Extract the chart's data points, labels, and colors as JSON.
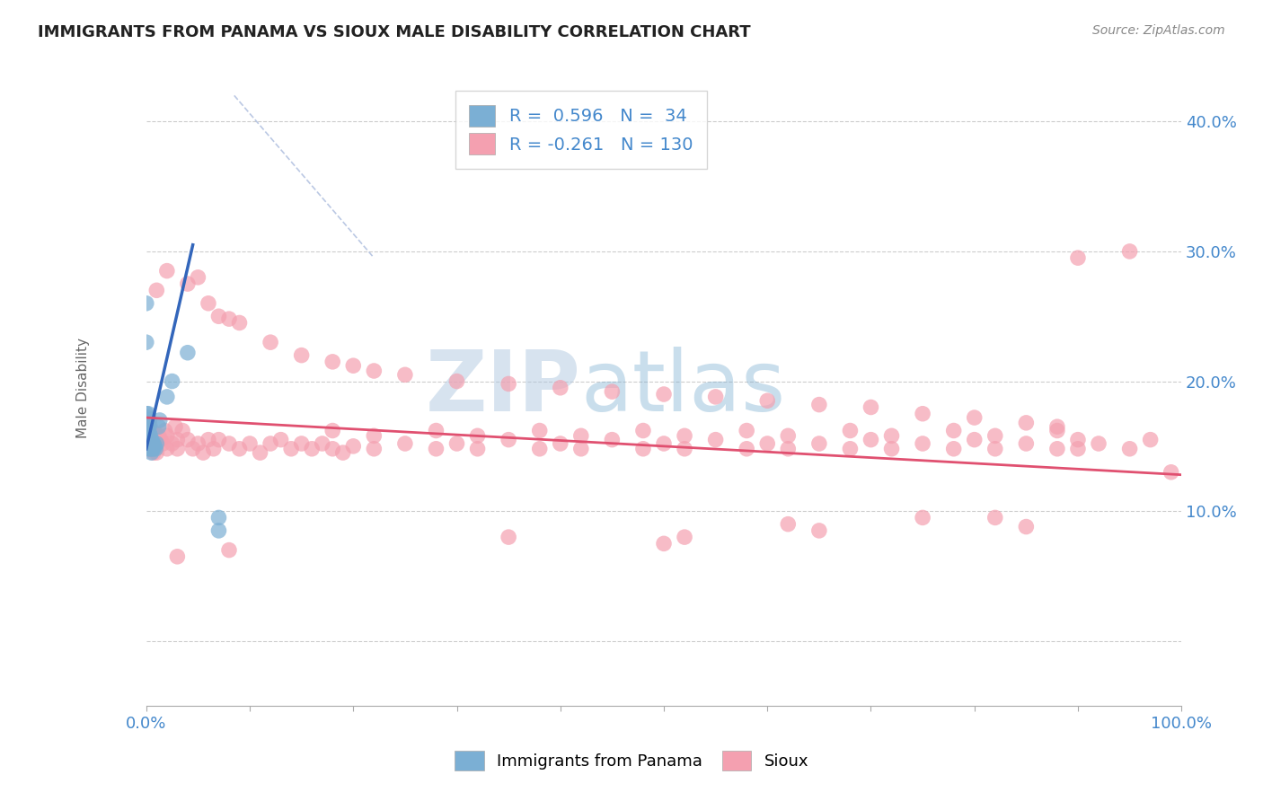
{
  "title": "IMMIGRANTS FROM PANAMA VS SIOUX MALE DISABILITY CORRELATION CHART",
  "source": "Source: ZipAtlas.com",
  "ylabel": "Male Disability",
  "xlim": [
    0.0,
    1.0
  ],
  "ylim": [
    -0.05,
    0.44
  ],
  "yticks": [
    0.0,
    0.1,
    0.2,
    0.3,
    0.4
  ],
  "ytick_labels": [
    "",
    "10.0%",
    "20.0%",
    "30.0%",
    "40.0%"
  ],
  "blue_R": "0.596",
  "blue_N": "34",
  "pink_R": "-0.261",
  "pink_N": "130",
  "watermark_zip": "ZIP",
  "watermark_atlas": "atlas",
  "blue_scatter": [
    [
      0.0,
      0.26
    ],
    [
      0.0,
      0.23
    ],
    [
      0.0,
      0.175
    ],
    [
      0.001,
      0.172
    ],
    [
      0.001,
      0.168
    ],
    [
      0.002,
      0.175
    ],
    [
      0.002,
      0.17
    ],
    [
      0.002,
      0.165
    ],
    [
      0.003,
      0.17
    ],
    [
      0.003,
      0.165
    ],
    [
      0.003,
      0.16
    ],
    [
      0.003,
      0.155
    ],
    [
      0.003,
      0.15
    ],
    [
      0.003,
      0.148
    ],
    [
      0.004,
      0.158
    ],
    [
      0.004,
      0.153
    ],
    [
      0.004,
      0.148
    ],
    [
      0.005,
      0.155
    ],
    [
      0.005,
      0.15
    ],
    [
      0.005,
      0.145
    ],
    [
      0.006,
      0.153
    ],
    [
      0.006,
      0.148
    ],
    [
      0.007,
      0.152
    ],
    [
      0.007,
      0.148
    ],
    [
      0.008,
      0.15
    ],
    [
      0.009,
      0.148
    ],
    [
      0.01,
      0.152
    ],
    [
      0.012,
      0.165
    ],
    [
      0.013,
      0.17
    ],
    [
      0.02,
      0.188
    ],
    [
      0.025,
      0.2
    ],
    [
      0.04,
      0.222
    ],
    [
      0.07,
      0.095
    ],
    [
      0.07,
      0.085
    ]
  ],
  "pink_scatter": [
    [
      0.0,
      0.168
    ],
    [
      0.0,
      0.162
    ],
    [
      0.0,
      0.155
    ],
    [
      0.0,
      0.15
    ],
    [
      0.001,
      0.165
    ],
    [
      0.001,
      0.158
    ],
    [
      0.001,
      0.152
    ],
    [
      0.002,
      0.162
    ],
    [
      0.002,
      0.155
    ],
    [
      0.003,
      0.168
    ],
    [
      0.003,
      0.158
    ],
    [
      0.003,
      0.148
    ],
    [
      0.004,
      0.165
    ],
    [
      0.004,
      0.155
    ],
    [
      0.004,
      0.148
    ],
    [
      0.005,
      0.162
    ],
    [
      0.005,
      0.152
    ],
    [
      0.006,
      0.158
    ],
    [
      0.006,
      0.148
    ],
    [
      0.007,
      0.155
    ],
    [
      0.007,
      0.145
    ],
    [
      0.008,
      0.16
    ],
    [
      0.008,
      0.15
    ],
    [
      0.009,
      0.155
    ],
    [
      0.01,
      0.152
    ],
    [
      0.01,
      0.145
    ],
    [
      0.012,
      0.158
    ],
    [
      0.014,
      0.155
    ],
    [
      0.016,
      0.152
    ],
    [
      0.018,
      0.162
    ],
    [
      0.02,
      0.158
    ],
    [
      0.02,
      0.148
    ],
    [
      0.025,
      0.152
    ],
    [
      0.028,
      0.165
    ],
    [
      0.03,
      0.155
    ],
    [
      0.03,
      0.148
    ],
    [
      0.035,
      0.162
    ],
    [
      0.04,
      0.155
    ],
    [
      0.045,
      0.148
    ],
    [
      0.05,
      0.152
    ],
    [
      0.055,
      0.145
    ],
    [
      0.06,
      0.155
    ],
    [
      0.065,
      0.148
    ],
    [
      0.07,
      0.155
    ],
    [
      0.08,
      0.152
    ],
    [
      0.09,
      0.148
    ],
    [
      0.1,
      0.152
    ],
    [
      0.11,
      0.145
    ],
    [
      0.12,
      0.152
    ],
    [
      0.13,
      0.155
    ],
    [
      0.14,
      0.148
    ],
    [
      0.15,
      0.152
    ],
    [
      0.16,
      0.148
    ],
    [
      0.17,
      0.152
    ],
    [
      0.18,
      0.148
    ],
    [
      0.19,
      0.145
    ],
    [
      0.2,
      0.15
    ],
    [
      0.22,
      0.148
    ],
    [
      0.25,
      0.152
    ],
    [
      0.28,
      0.148
    ],
    [
      0.3,
      0.152
    ],
    [
      0.32,
      0.148
    ],
    [
      0.35,
      0.155
    ],
    [
      0.38,
      0.148
    ],
    [
      0.4,
      0.152
    ],
    [
      0.42,
      0.148
    ],
    [
      0.45,
      0.155
    ],
    [
      0.48,
      0.148
    ],
    [
      0.5,
      0.152
    ],
    [
      0.52,
      0.148
    ],
    [
      0.55,
      0.155
    ],
    [
      0.58,
      0.148
    ],
    [
      0.6,
      0.152
    ],
    [
      0.62,
      0.148
    ],
    [
      0.65,
      0.152
    ],
    [
      0.68,
      0.148
    ],
    [
      0.7,
      0.155
    ],
    [
      0.72,
      0.148
    ],
    [
      0.75,
      0.152
    ],
    [
      0.78,
      0.148
    ],
    [
      0.8,
      0.155
    ],
    [
      0.82,
      0.148
    ],
    [
      0.85,
      0.152
    ],
    [
      0.88,
      0.148
    ],
    [
      0.9,
      0.155
    ],
    [
      0.9,
      0.148
    ],
    [
      0.92,
      0.152
    ],
    [
      0.95,
      0.148
    ],
    [
      0.97,
      0.155
    ],
    [
      0.99,
      0.13
    ],
    [
      0.01,
      0.27
    ],
    [
      0.02,
      0.285
    ],
    [
      0.04,
      0.275
    ],
    [
      0.05,
      0.28
    ],
    [
      0.06,
      0.26
    ],
    [
      0.07,
      0.25
    ],
    [
      0.08,
      0.248
    ],
    [
      0.09,
      0.245
    ],
    [
      0.12,
      0.23
    ],
    [
      0.15,
      0.22
    ],
    [
      0.18,
      0.215
    ],
    [
      0.2,
      0.212
    ],
    [
      0.22,
      0.208
    ],
    [
      0.25,
      0.205
    ],
    [
      0.3,
      0.2
    ],
    [
      0.35,
      0.198
    ],
    [
      0.4,
      0.195
    ],
    [
      0.45,
      0.192
    ],
    [
      0.5,
      0.19
    ],
    [
      0.55,
      0.188
    ],
    [
      0.6,
      0.185
    ],
    [
      0.65,
      0.182
    ],
    [
      0.7,
      0.18
    ],
    [
      0.75,
      0.175
    ],
    [
      0.8,
      0.172
    ],
    [
      0.85,
      0.168
    ],
    [
      0.88,
      0.165
    ],
    [
      0.9,
      0.295
    ],
    [
      0.95,
      0.3
    ],
    [
      0.03,
      0.065
    ],
    [
      0.08,
      0.07
    ],
    [
      0.35,
      0.08
    ],
    [
      0.5,
      0.075
    ],
    [
      0.52,
      0.08
    ],
    [
      0.62,
      0.09
    ],
    [
      0.65,
      0.085
    ],
    [
      0.75,
      0.095
    ],
    [
      0.82,
      0.095
    ],
    [
      0.85,
      0.088
    ],
    [
      0.18,
      0.162
    ],
    [
      0.22,
      0.158
    ],
    [
      0.28,
      0.162
    ],
    [
      0.32,
      0.158
    ],
    [
      0.38,
      0.162
    ],
    [
      0.42,
      0.158
    ],
    [
      0.48,
      0.162
    ],
    [
      0.52,
      0.158
    ],
    [
      0.58,
      0.162
    ],
    [
      0.62,
      0.158
    ],
    [
      0.68,
      0.162
    ],
    [
      0.72,
      0.158
    ],
    [
      0.78,
      0.162
    ],
    [
      0.82,
      0.158
    ],
    [
      0.88,
      0.162
    ]
  ],
  "blue_line": [
    [
      0.0,
      0.148
    ],
    [
      0.045,
      0.305
    ]
  ],
  "pink_line": [
    [
      0.0,
      0.172
    ],
    [
      1.0,
      0.128
    ]
  ],
  "diag_line": [
    [
      0.085,
      0.42
    ],
    [
      0.22,
      0.295
    ]
  ],
  "blue_color": "#7bafd4",
  "blue_line_color": "#3366bb",
  "pink_color": "#f4a0b0",
  "pink_line_color": "#e05070",
  "diag_line_color": "#aabbdd",
  "grid_color": "#cccccc",
  "background_color": "#ffffff",
  "title_color": "#222222",
  "axis_label_color": "#4488cc",
  "watermark_color": "#c8d8e8",
  "legend_label_color": "#4488cc"
}
